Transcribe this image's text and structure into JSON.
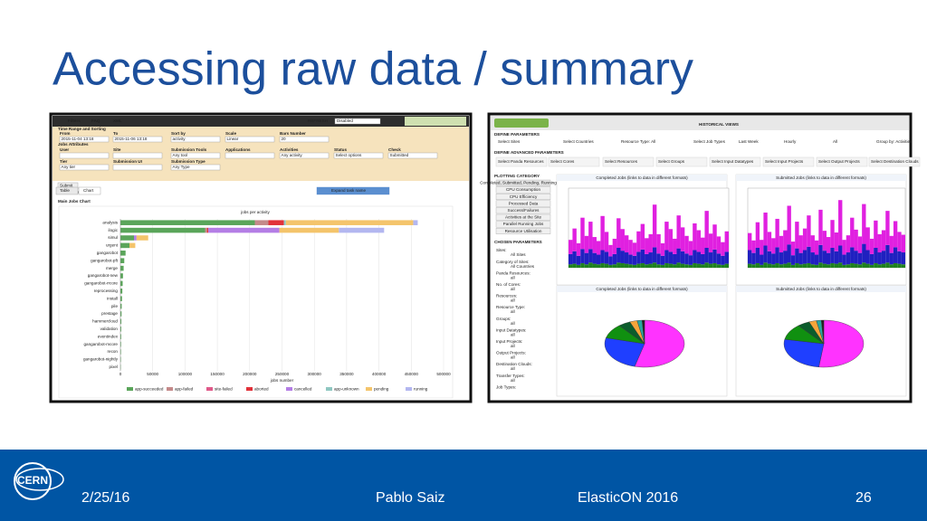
{
  "slide": {
    "title": "Accessing raw data / summary",
    "logo": "CERN",
    "footer": {
      "date": "2/25/16",
      "author": "Pablo Saiz",
      "event": "ElasticON 2016",
      "page": "26"
    }
  },
  "left_screenshot": {
    "toolbar": [
      "Filters",
      "FAQ",
      "XML"
    ],
    "refresh": "REFRESH",
    "refresh_value": "Disabled",
    "sections": [
      "Time Range and Sorting",
      "Jobs Attributes"
    ],
    "fields": [
      {
        "label": "From",
        "value": "2015-11-04 13:18"
      },
      {
        "label": "To",
        "value": "2015-11-06 13:18"
      },
      {
        "label": "Sort by",
        "value": "activity"
      },
      {
        "label": "Scale",
        "value": "Linear"
      },
      {
        "label": "Bars Number",
        "value": "20"
      },
      {
        "label": "User"
      },
      {
        "label": "Site"
      },
      {
        "label": "Submission Tools",
        "value": "Any tool"
      },
      {
        "label": "Applications"
      },
      {
        "label": "Activities",
        "value": "Any activity"
      },
      {
        "label": "Status",
        "value": "Select options"
      },
      {
        "label": "Check",
        "value": "Submitted"
      },
      {
        "label": "Tier",
        "value": "Any tier"
      },
      {
        "label": "Submission UI"
      },
      {
        "label": "Submission Type",
        "value": "Any Type"
      }
    ],
    "submit": "Submit",
    "breadcrumb": "Chart » Jobs",
    "tabs": [
      "Table",
      "Chart"
    ],
    "expand": "Expand task name",
    "section_title": "Main Jobs Chart"
  },
  "right_screenshot": {
    "header": "HISTORICAL VIEWS",
    "define": "DEFINE PARAMETERS",
    "define_items": [
      "Select Sites",
      "Select Countries",
      "Resource Type: All",
      "Select Job Types",
      "Last Week",
      "Hourly",
      "All",
      "Group by: Activities"
    ],
    "advanced": "DEFINE ADVANCED PARAMETERS",
    "advanced_items": [
      "Select Panda Resources",
      "Select Cores",
      "Select Resources",
      "Select Groups",
      "Select Input Datatypes",
      "Select Input Projects",
      "Select Output Projects",
      "Select Destination Clouds"
    ],
    "plotting": "PLOTTING CATEGORY",
    "buttons": [
      "Completed, Submitted, Pending, Running Jobs",
      "CPU Consumption",
      "CPU Efficiency",
      "Processed Data",
      "Success/Failures",
      "Activities at the Site",
      "Parallel Running Jobs",
      "Resource Utilisation"
    ],
    "chosen": "CHOSEN PARAMETERS",
    "params": [
      [
        "Sites:",
        "All Sites"
      ],
      [
        "Category of Sites:",
        "All Countries"
      ],
      [
        "Panda Resources:",
        "all"
      ],
      [
        "No. of Cores:",
        "all"
      ],
      [
        "Resources:",
        "all"
      ],
      [
        "Resource Type:",
        "all"
      ],
      [
        "Groups:",
        "all"
      ],
      [
        "Input Datatypes:",
        "all"
      ],
      [
        "Input Projects:",
        "all"
      ],
      [
        "Output Projects:",
        "all"
      ],
      [
        "Destination Clouds:",
        "all"
      ],
      [
        "Transfer Types:",
        "all"
      ],
      [
        "Job Types:"
      ]
    ],
    "panel_titles": [
      "Completed Jobs (links to data in different formats)",
      "Submitted Jobs (links to data in different formats)",
      "Completed Jobs (links to data in different formats)",
      "Submitted Jobs (links to data in different formats)"
    ]
  },
  "chart_data": [
    {
      "type": "hbar_stacked",
      "title": "jobs per activity",
      "xlabel": "jobs number",
      "categories": [
        "analysis",
        "ilogic",
        "simul",
        "urgent",
        "gangarobot",
        "gangarobot-pft",
        "merge",
        "gangarobot-new",
        "gangarobot-rrcore",
        "reprocessing",
        "install",
        "pile",
        "prestage",
        "hammercloud",
        "validation",
        "eventindex",
        "gangarobot-mcore",
        "recon",
        "gangarobot-nightly",
        "pixel"
      ],
      "xlim": [
        0,
        500000
      ],
      "xticks": [
        0,
        50000,
        100000,
        150000,
        200000,
        250000,
        300000,
        350000,
        400000,
        450000,
        500000
      ],
      "grid": true,
      "series": [
        {
          "name": "app-succeeded",
          "color": "#5aa55a",
          "values": [
            208000,
            131000,
            21000,
            14000,
            8000,
            6000,
            5000,
            4000,
            3500,
            3000,
            2500,
            2000,
            1800,
            1500,
            1300,
            1200,
            1000,
            900,
            800,
            600
          ]
        },
        {
          "name": "app-failed",
          "color": "#c48a8a",
          "values": [
            21000,
            3000,
            0,
            0,
            0,
            0,
            0,
            0,
            0,
            0,
            0,
            0,
            0,
            0,
            0,
            0,
            0,
            0,
            0,
            0
          ]
        },
        {
          "name": "site-failed",
          "color": "#e05a8a",
          "values": [
            0,
            0,
            0,
            0,
            0,
            0,
            0,
            0,
            0,
            0,
            0,
            0,
            0,
            0,
            0,
            0,
            0,
            0,
            0,
            0
          ]
        },
        {
          "name": "aborted",
          "color": "#e2323a",
          "values": [
            24000,
            2000,
            0,
            0,
            0,
            0,
            0,
            0,
            0,
            0,
            0,
            0,
            0,
            0,
            0,
            0,
            0,
            0,
            0,
            0
          ]
        },
        {
          "name": "cancelled",
          "color": "#b47ee5",
          "values": [
            0,
            110000,
            4000,
            0,
            0,
            0,
            0,
            0,
            0,
            0,
            0,
            0,
            0,
            0,
            0,
            0,
            0,
            0,
            0,
            0
          ]
        },
        {
          "name": "app-unknown",
          "color": "#8fc7c1",
          "values": [
            3000,
            0,
            0,
            0,
            0,
            0,
            0,
            0,
            0,
            0,
            0,
            0,
            0,
            0,
            0,
            0,
            0,
            0,
            0,
            0
          ]
        },
        {
          "name": "pending",
          "color": "#f4c46b",
          "values": [
            197000,
            92000,
            18000,
            9000,
            0,
            0,
            0,
            0,
            0,
            0,
            0,
            0,
            0,
            0,
            0,
            0,
            0,
            0,
            0,
            0
          ]
        },
        {
          "name": "running",
          "color": "#b3b7f0",
          "values": [
            7000,
            70000,
            0,
            0,
            0,
            0,
            0,
            0,
            0,
            0,
            0,
            0,
            0,
            0,
            0,
            0,
            0,
            0,
            0,
            0
          ]
        }
      ]
    },
    {
      "type": "timeseries",
      "ylim": [
        0,
        140000
      ],
      "series": [
        {
          "color": "#208020",
          "values": [
            6000,
            7000,
            5000,
            8000,
            6000,
            9000,
            7000,
            6000,
            8000,
            7000,
            5000,
            6000,
            9000,
            8000,
            7000,
            6000,
            5000,
            7000,
            8000,
            6000,
            7000,
            9000,
            6000,
            5000,
            8000,
            7000,
            6000,
            9000,
            7000,
            6000,
            5000,
            8000,
            7000,
            6000,
            9000,
            7000,
            8000,
            6000,
            5000,
            7000
          ]
        },
        {
          "color": "#2020c0",
          "values": [
            18000,
            22000,
            16000,
            25000,
            20000,
            24000,
            19000,
            17000,
            23000,
            21000,
            15000,
            18000,
            26000,
            22000,
            20000,
            17000,
            16000,
            21000,
            24000,
            18000,
            20000,
            27000,
            19000,
            16000,
            23000,
            21000,
            18000,
            25000,
            22000,
            19000,
            17000,
            23000,
            21000,
            18000,
            26000,
            20000,
            24000,
            19000,
            16000,
            21000
          ]
        },
        {
          "color": "#e020e0",
          "values": [
            25000,
            40000,
            22000,
            55000,
            30000,
            48000,
            28000,
            24000,
            60000,
            35000,
            20000,
            27000,
            52000,
            38000,
            30000,
            26000,
            23000,
            36000,
            45000,
            28000,
            32000,
            75000,
            34000,
            22000,
            50000,
            40000,
            27000,
            58000,
            42000,
            31000,
            25000,
            47000,
            38000,
            29000,
            65000,
            33000,
            44000,
            30000,
            24000,
            36000
          ]
        }
      ]
    },
    {
      "type": "timeseries",
      "ylim": [
        0,
        140000
      ],
      "series": [
        {
          "color": "#208020",
          "values": [
            7000,
            6000,
            8000,
            5000,
            9000,
            7000,
            6000,
            8000,
            6000,
            7000,
            9000,
            5000,
            8000,
            6000,
            7000,
            8000,
            6000,
            5000,
            9000,
            7000,
            6000,
            8000,
            7000,
            9000,
            5000,
            6000,
            8000,
            7000,
            6000,
            9000,
            7000,
            5000,
            8000,
            6000,
            7000,
            9000,
            6000,
            8000,
            7000,
            6000
          ]
        },
        {
          "color": "#2020c0",
          "values": [
            24000,
            20000,
            27000,
            18000,
            30000,
            22000,
            19000,
            28000,
            21000,
            23000,
            32000,
            17000,
            26000,
            20000,
            24000,
            29000,
            21000,
            18000,
            31000,
            23000,
            20000,
            27000,
            22000,
            30000,
            18000,
            21000,
            28000,
            23000,
            20000,
            33000,
            24000,
            19000,
            27000,
            21000,
            23000,
            31000,
            20000,
            28000,
            22000,
            21000
          ]
        },
        {
          "color": "#e020e0",
          "values": [
            30000,
            22000,
            45000,
            26000,
            58000,
            34000,
            27000,
            50000,
            29000,
            36000,
            68000,
            24000,
            47000,
            31000,
            38000,
            55000,
            30000,
            25000,
            62000,
            35000,
            28000,
            49000,
            33000,
            80000,
            26000,
            30000,
            52000,
            37000,
            29000,
            70000,
            40000,
            27000,
            48000,
            32000,
            36000,
            60000,
            30000,
            46000,
            34000,
            31000
          ]
        }
      ]
    },
    {
      "type": "pie",
      "colors": [
        "#ff33ff",
        "#1f3fff",
        "#109010",
        "#0c5c2c",
        "#f7a53a",
        "#2aa7a0",
        "#222222"
      ],
      "values": [
        54,
        25,
        10,
        5,
        3,
        2,
        1
      ]
    },
    {
      "type": "pie",
      "colors": [
        "#ff33ff",
        "#1f3fff",
        "#109010",
        "#0c5c2c",
        "#f7a53a",
        "#2aa7a0",
        "#222222"
      ],
      "values": [
        52,
        26,
        11,
        5,
        3,
        2,
        1
      ]
    }
  ]
}
